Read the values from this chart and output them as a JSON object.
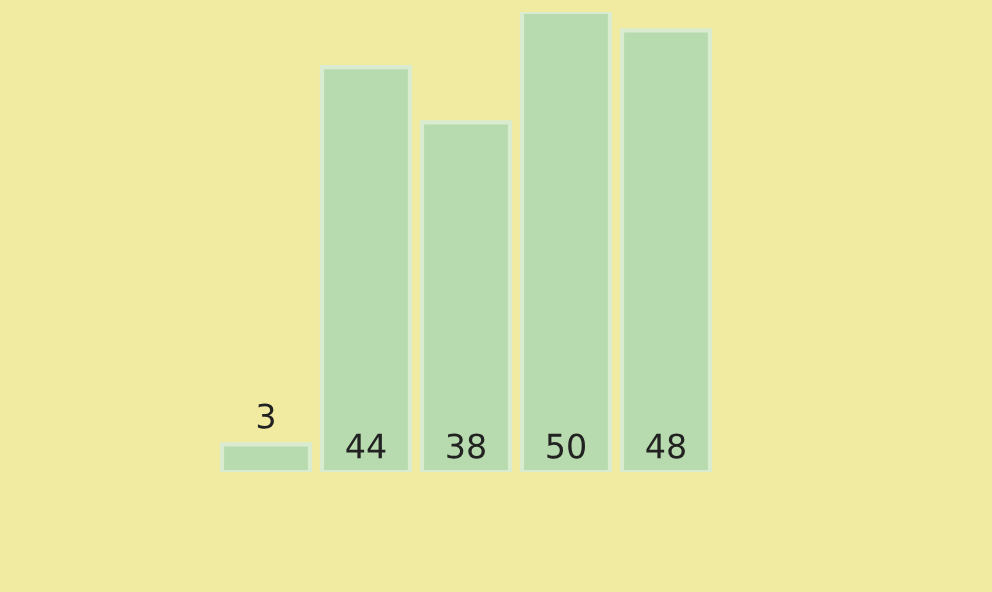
{
  "chart_data": {
    "type": "bar",
    "categories": [
      null,
      null,
      null,
      null,
      null
    ],
    "values": [
      3,
      44,
      38,
      50,
      48
    ],
    "color": "#b7dbae",
    "data_labels": true
  }
}
